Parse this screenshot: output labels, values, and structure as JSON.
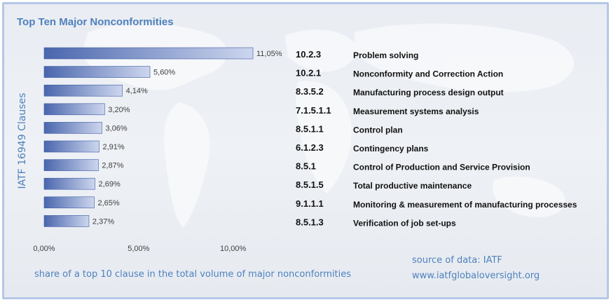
{
  "chart_data": {
    "type": "bar",
    "orientation": "horizontal",
    "title": "Top Ten Major Nonconformities",
    "ylabel": "IATF 16949 Clauses",
    "xlabel": "share of a top 10 clause in the total volume of major nonconformities",
    "xlim": [
      0,
      11.05
    ],
    "x_ticks": [
      "0,00%",
      "5,00%",
      "10,00%"
    ],
    "x_tick_values": [
      0,
      5,
      10
    ],
    "categories": [
      "10.2.3",
      "10.2.1",
      "8.3.5.2",
      "7.1.5.1.1",
      "8.5.1.1",
      "6.1.2.3",
      "8.5.1",
      "8.5.1.5",
      "9.1.1.1",
      "8.5.1.3"
    ],
    "clause_names": [
      "Problem solving",
      "Nonconformity and Correction Action",
      "Manufacturing process design output",
      "Measurement systems analysis",
      "Control plan",
      "Contingency plans",
      "Control of Production and Service Provision",
      "Total productive maintenance",
      "Monitoring & measurement of manufacturing processes",
      "Verification of job set-ups"
    ],
    "values": [
      11.05,
      5.6,
      4.14,
      3.2,
      3.06,
      2.91,
      2.87,
      2.69,
      2.65,
      2.37
    ],
    "data_labels": [
      "11,05%",
      "5,60%",
      "4,14%",
      "3,20%",
      "3,06%",
      "2,91%",
      "2,87%",
      "2,69%",
      "2,65%",
      "2,37%"
    ],
    "grid": false,
    "legend": "none",
    "bar_color": "#4a66ad"
  },
  "footer": {
    "source_label": "source of data: IATF",
    "source_url": "www.iatfglobaloversight.org"
  }
}
